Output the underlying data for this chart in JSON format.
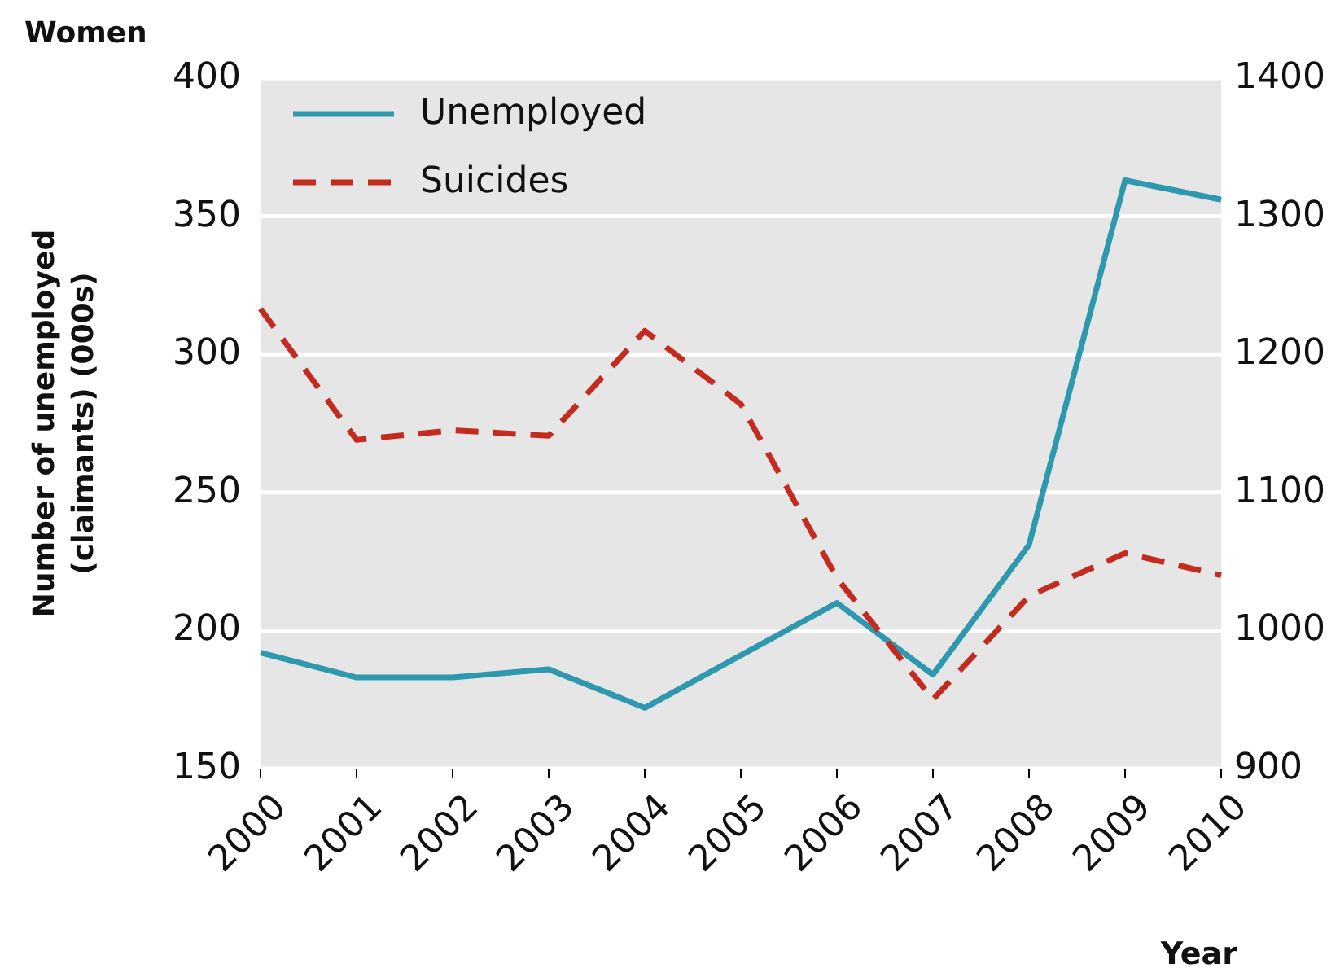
{
  "chart_data": {
    "type": "line",
    "title": "Women",
    "xlabel": "Year",
    "ylabel": "Number of unemployed\n(claimants) (000s)",
    "categories": [
      "2000",
      "2001",
      "2002",
      "2003",
      "2004",
      "2005",
      "2006",
      "2007",
      "2008",
      "2009",
      "2010"
    ],
    "series": [
      {
        "name": "Unemployed",
        "color": "#2e98ae",
        "line_style": "solid",
        "values": [
          192,
          183,
          183,
          186,
          172,
          191,
          210,
          184,
          231,
          363,
          356
        ]
      },
      {
        "name": "Suicides",
        "color": "#c42b1f",
        "line_style": "dashed",
        "axis": "y2",
        "values": [
          1233,
          1138,
          1145,
          1141,
          1217,
          1164,
          1038,
          950,
          1025,
          1056,
          1040
        ]
      }
    ],
    "ylim": [
      150,
      400
    ],
    "yticks": [
      150,
      200,
      250,
      300,
      350,
      400
    ],
    "y2lim": [
      900,
      1400
    ],
    "y2ticks": [
      900,
      1000,
      1100,
      1200,
      1300,
      1400
    ],
    "grid": "y",
    "legend": "top left",
    "marker": "none"
  }
}
